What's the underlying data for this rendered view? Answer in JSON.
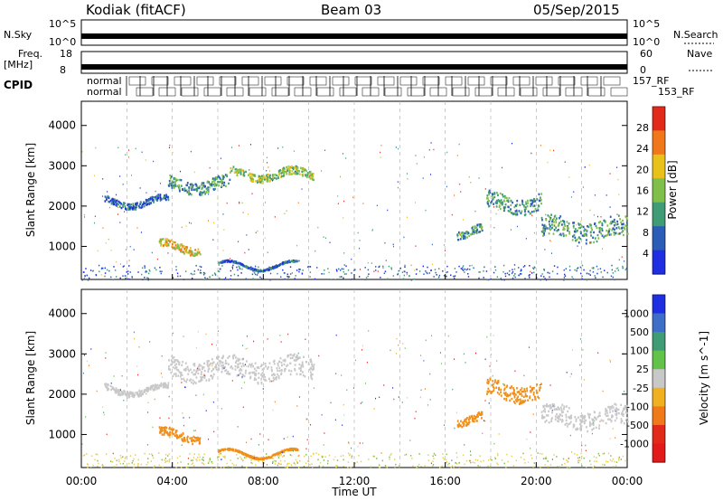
{
  "header": {
    "station": "Kodiak (fitACF)",
    "beam": "Beam 03",
    "date": "05/Sep/2015"
  },
  "top_panels": {
    "nsky": {
      "label": "N.Sky",
      "ticks": [
        "10^5",
        "10^0"
      ]
    },
    "nsearch": {
      "label": "N.Search",
      "ticks": [
        "10^5",
        "10^0"
      ]
    },
    "freq": {
      "label_line1": "Freq.",
      "label_line2": "[MHz]",
      "ticks": [
        "18",
        "8"
      ]
    },
    "nave": {
      "label": "Nave",
      "ticks": [
        "60",
        "0"
      ]
    },
    "cpid": {
      "label": "CPID",
      "row1_first": "normal",
      "row2_first": "normal",
      "row1_last": "157_RF",
      "row2_last": "153_RF"
    }
  },
  "chart_data": [
    {
      "type": "heatmap",
      "name": "power-panel",
      "xlabel": "Time UT",
      "ylabel": "Slant Range [km]",
      "x_ticks": [
        "00:00",
        "04:00",
        "08:00",
        "12:00",
        "16:00",
        "20:00",
        "00:00"
      ],
      "xlim_hours": [
        0,
        24
      ],
      "y_ticks": [
        1000,
        2000,
        3000,
        4000
      ],
      "ylim": [
        180,
        4600
      ],
      "colorbar": {
        "label": "Power [dB]",
        "ticks": [
          "4",
          "8",
          "12",
          "16",
          "20",
          "24",
          "28"
        ],
        "colors": [
          "#1f2ee0",
          "#2b5db8",
          "#3f9c74",
          "#7fbf4a",
          "#e8c21a",
          "#f0781a",
          "#e22a1a"
        ]
      },
      "features": [
        {
          "t": [
            1.0,
            3.8
          ],
          "r": [
            2050,
            2200
          ],
          "level": 1
        },
        {
          "t": [
            3.8,
            6.5
          ],
          "r": [
            2400,
            2700
          ],
          "level": 2
        },
        {
          "t": [
            6.5,
            10.2
          ],
          "r": [
            2700,
            2900
          ],
          "level": 3
        },
        {
          "t": [
            3.4,
            5.2
          ],
          "r": [
            900,
            1100
          ],
          "level": 4
        },
        {
          "t": [
            6.0,
            9.5
          ],
          "r": [
            520,
            560
          ],
          "level": 1
        },
        {
          "t": [
            16.5,
            17.6
          ],
          "r": [
            1300,
            1500
          ],
          "level": 2
        },
        {
          "t": [
            17.8,
            20.2
          ],
          "r": [
            1900,
            2300
          ],
          "level": 2
        },
        {
          "t": [
            20.2,
            24.0
          ],
          "r": [
            1200,
            1700
          ],
          "level": 2
        }
      ]
    },
    {
      "type": "heatmap",
      "name": "velocity-panel",
      "xlabel": "Time UT",
      "ylabel": "Slant Range [km]",
      "x_ticks": [
        "00:00",
        "04:00",
        "08:00",
        "12:00",
        "16:00",
        "20:00",
        "00:00"
      ],
      "xlim_hours": [
        0,
        24
      ],
      "y_ticks": [
        1000,
        2000,
        3000,
        4000
      ],
      "ylim": [
        180,
        4600
      ],
      "colorbar": {
        "label": "Velocity [m s^-1]",
        "ticks": [
          "1000",
          "500",
          "100",
          "25",
          "-25",
          "-100",
          "-500",
          "-1000"
        ],
        "colors": [
          "#1f2ee0",
          "#3f6ec8",
          "#3f9c74",
          "#62c24a",
          "#c8c8c8",
          "#f0b020",
          "#f07a1a",
          "#e22a1a",
          "#e21a1a"
        ]
      },
      "features": [
        {
          "t": [
            1.0,
            3.8
          ],
          "r": [
            2050,
            2200
          ],
          "level": "grey"
        },
        {
          "t": [
            3.8,
            10.2
          ],
          "r": [
            2400,
            2900
          ],
          "level": "grey"
        },
        {
          "t": [
            3.4,
            5.2
          ],
          "r": [
            900,
            1100
          ],
          "level": "orange"
        },
        {
          "t": [
            6.0,
            9.5
          ],
          "r": [
            520,
            560
          ],
          "level": "orange"
        },
        {
          "t": [
            16.5,
            17.6
          ],
          "r": [
            1300,
            1500
          ],
          "level": "orange"
        },
        {
          "t": [
            17.8,
            20.2
          ],
          "r": [
            1900,
            2300
          ],
          "level": "orange"
        },
        {
          "t": [
            20.2,
            24.0
          ],
          "r": [
            1200,
            1700
          ],
          "level": "grey"
        }
      ]
    }
  ]
}
